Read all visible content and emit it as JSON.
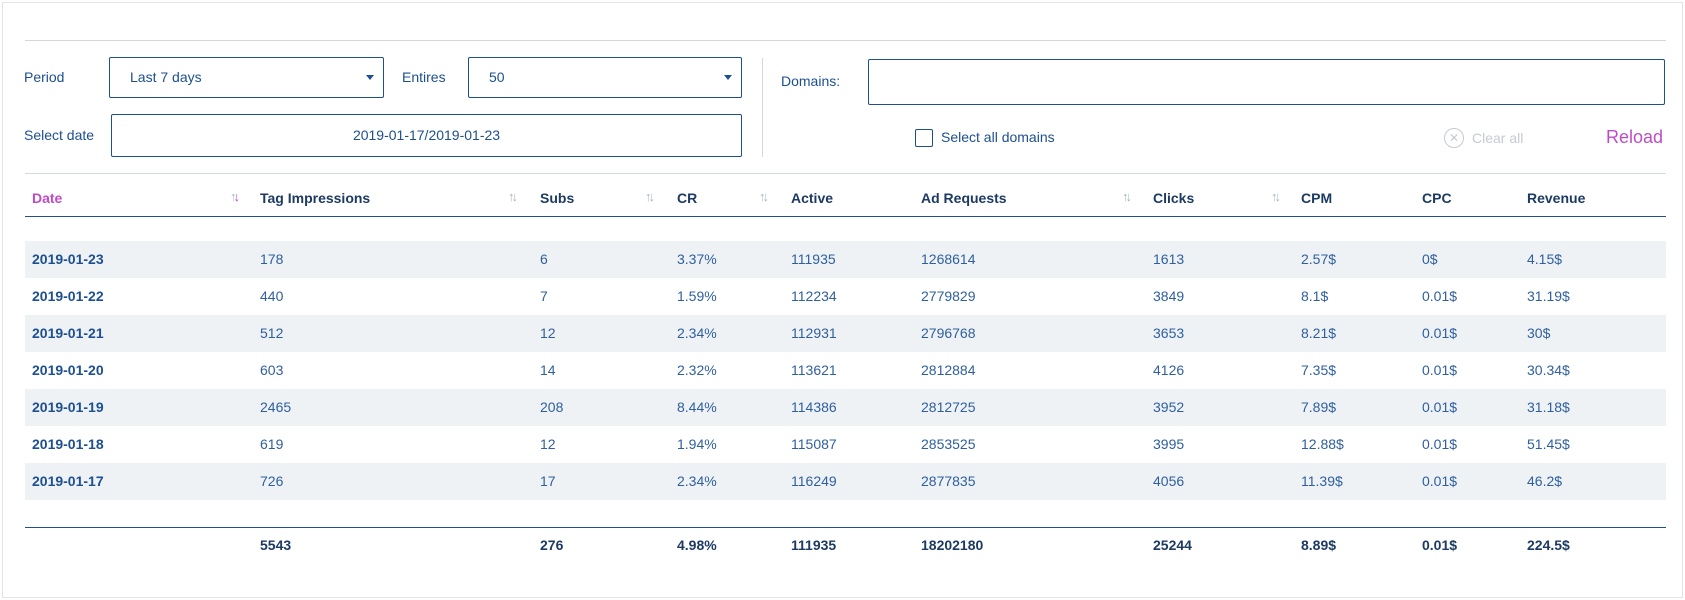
{
  "filters": {
    "period_label": "Period",
    "period_value": "Last 7 days",
    "entries_label": "Entires",
    "entries_value": "50",
    "select_date_label": "Select date",
    "date_range": "2019-01-17/2019-01-23",
    "domains_label": "Domains:",
    "domains_value": "",
    "select_all_label": "Select all domains",
    "clear_all_label": "Clear all",
    "reload_label": "Reload"
  },
  "table": {
    "columns": [
      "Date",
      "Tag Impressions",
      "Subs",
      "CR",
      "Active",
      "Ad Requests",
      "Clicks",
      "CPM",
      "CPC",
      "Revenue"
    ],
    "sort_icons": {
      "active": "sort-desc-icon",
      "default": "sort-icon"
    },
    "rows": [
      [
        "2019-01-23",
        "178",
        "6",
        "3.37%",
        "111935",
        "1268614",
        "1613",
        "2.57$",
        "0$",
        "4.15$"
      ],
      [
        "2019-01-22",
        "440",
        "7",
        "1.59%",
        "112234",
        "2779829",
        "3849",
        "8.1$",
        "0.01$",
        "31.19$"
      ],
      [
        "2019-01-21",
        "512",
        "12",
        "2.34%",
        "112931",
        "2796768",
        "3653",
        "8.21$",
        "0.01$",
        "30$"
      ],
      [
        "2019-01-20",
        "603",
        "14",
        "2.32%",
        "113621",
        "2812884",
        "4126",
        "7.35$",
        "0.01$",
        "30.34$"
      ],
      [
        "2019-01-19",
        "2465",
        "208",
        "8.44%",
        "114386",
        "2812725",
        "3952",
        "7.89$",
        "0.01$",
        "31.18$"
      ],
      [
        "2019-01-18",
        "619",
        "12",
        "1.94%",
        "115087",
        "2853525",
        "3995",
        "12.88$",
        "0.01$",
        "51.45$"
      ],
      [
        "2019-01-17",
        "726",
        "17",
        "2.34%",
        "116249",
        "2877835",
        "4056",
        "11.39$",
        "0.01$",
        "46.2$"
      ]
    ],
    "totals": [
      "",
      "5543",
      "276",
      "4.98%",
      "111935",
      "18202180",
      "25244",
      "8.89$",
      "0.01$",
      "224.5$"
    ]
  },
  "colors": {
    "primary": "#1d4f91",
    "accent": "#c04bc7",
    "row_shade": "#eef2f5",
    "muted": "#c5cbd3"
  }
}
